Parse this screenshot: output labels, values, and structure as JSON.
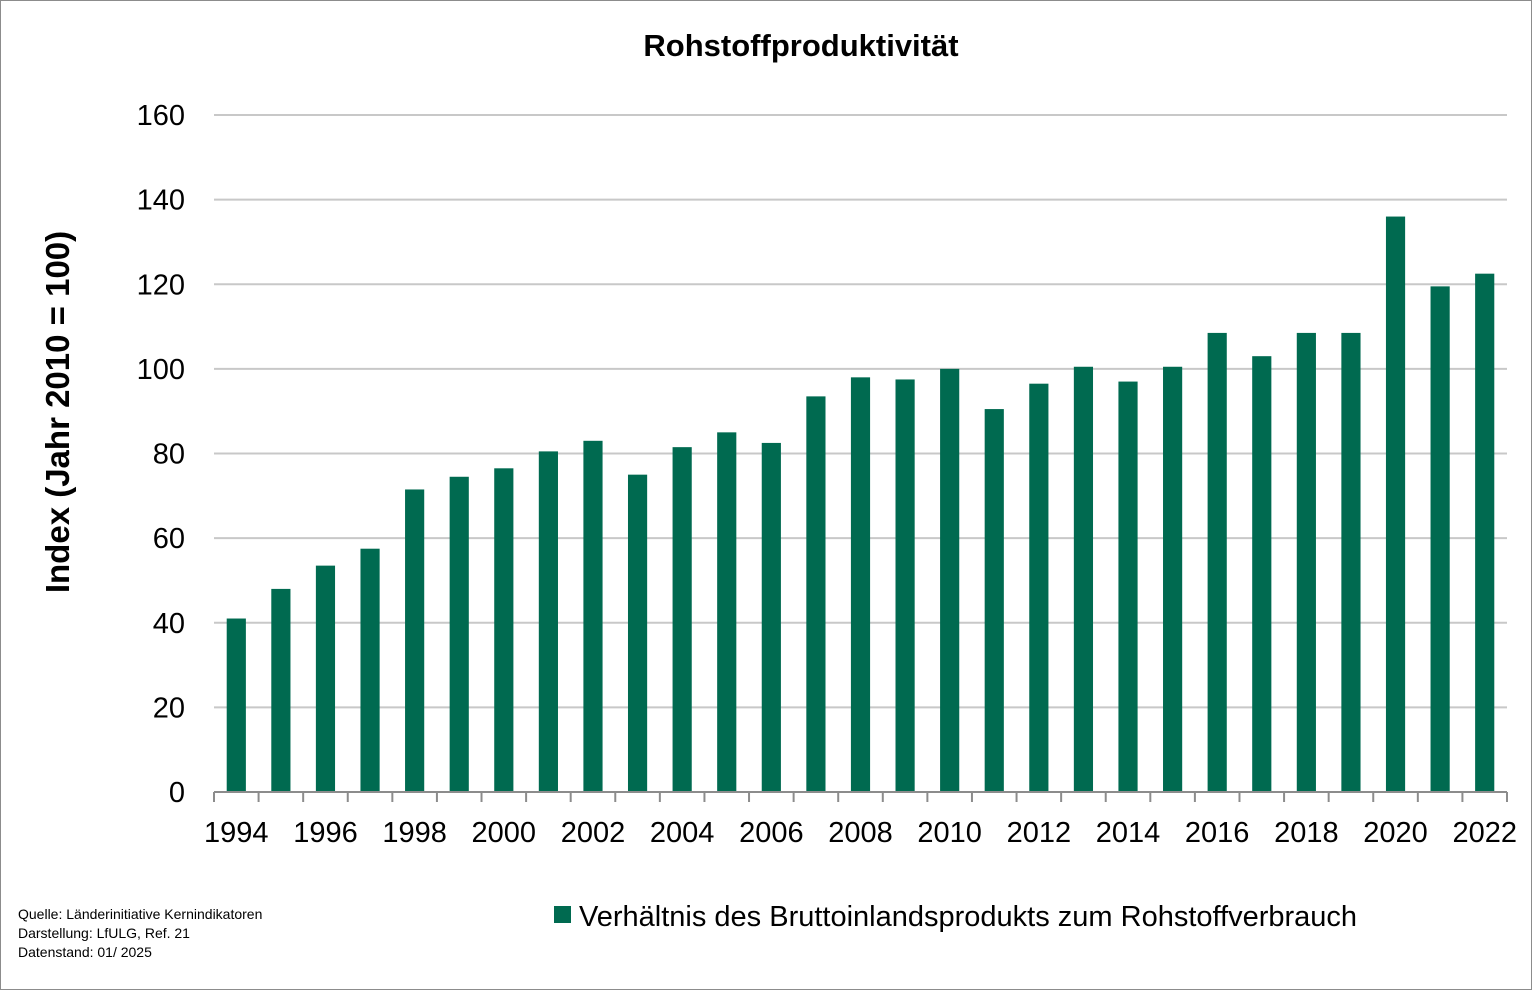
{
  "chart_data": {
    "type": "bar",
    "title": "Rohstoffproduktivität",
    "ylabel": "Index (Jahr 2010 = 100)",
    "xlabel": "",
    "ylim": [
      0,
      160
    ],
    "yticks": [
      "0",
      "20",
      "40",
      "60",
      "80",
      "100",
      "120",
      "140",
      "160"
    ],
    "categories": [
      "1994",
      "1995",
      "1996",
      "1997",
      "1998",
      "1999",
      "2000",
      "2001",
      "2002",
      "2003",
      "2004",
      "2005",
      "2006",
      "2007",
      "2008",
      "2009",
      "2010",
      "2011",
      "2012",
      "2013",
      "2014",
      "2015",
      "2016",
      "2017",
      "2018",
      "2019",
      "2020",
      "2021",
      "2022"
    ],
    "xtick_labels": [
      "1994",
      "1996",
      "1998",
      "2000",
      "2002",
      "2004",
      "2006",
      "2008",
      "2010",
      "2012",
      "2014",
      "2016",
      "2018",
      "2020",
      "2022"
    ],
    "series": [
      {
        "name": "Verhältnis des Bruttoinlandsprodukts zum Rohstoffverbrauch",
        "color": "#006a50",
        "values": [
          41,
          48,
          53.5,
          57.5,
          71.5,
          74.5,
          76.5,
          80.5,
          83,
          75,
          81.5,
          85,
          82.5,
          93.5,
          98,
          97.5,
          100,
          90.5,
          96.5,
          100.5,
          97,
          100.5,
          108.5,
          103,
          108.5,
          108.5,
          136,
          119.5,
          122.5
        ]
      }
    ],
    "grid": true,
    "legend_position": "bottom-right"
  },
  "notes": {
    "source": "Quelle:  Länderinitiative  Kernindikatoren",
    "author": "Darstellung:  LfULG, Ref. 21",
    "date": "Datenstand:  01/ 2025"
  }
}
